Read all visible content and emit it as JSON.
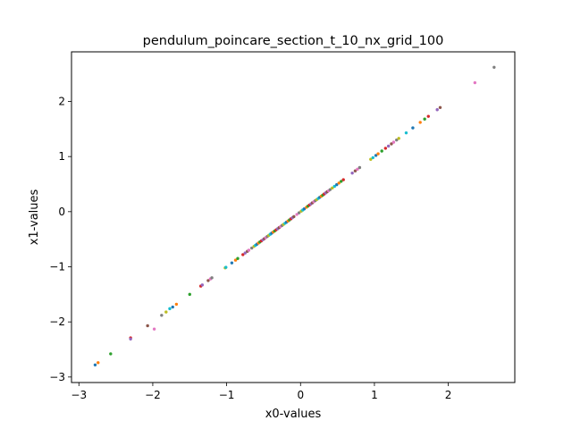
{
  "chart_data": {
    "type": "scatter",
    "title": "pendulum_poincare_section_t_10_nx_grid_100",
    "xlabel": "x0-values",
    "ylabel": "x1-values",
    "xlim": [
      -3.1,
      2.9
    ],
    "ylim": [
      -3.1,
      2.9
    ],
    "xticks": [
      -3,
      -2,
      -1,
      0,
      1,
      2
    ],
    "yticks": [
      -3,
      -2,
      -1,
      0,
      1,
      2
    ],
    "grid": false,
    "legend": "none",
    "palette": [
      "#1f77b4",
      "#ff7f0e",
      "#2ca02c",
      "#d62728",
      "#9467bd",
      "#8c564b",
      "#e377c2",
      "#7f7f7f",
      "#bcbd22",
      "#17becf"
    ],
    "points": [
      {
        "x": -2.78,
        "y": -2.78
      },
      {
        "x": -2.74,
        "y": -2.74
      },
      {
        "x": -2.57,
        "y": -2.58
      },
      {
        "x": -2.3,
        "y": -2.29
      },
      {
        "x": -2.3,
        "y": -2.31
      },
      {
        "x": -2.07,
        "y": -2.07
      },
      {
        "x": -1.98,
        "y": -2.13
      },
      {
        "x": -1.88,
        "y": -1.88
      },
      {
        "x": -1.82,
        "y": -1.82
      },
      {
        "x": -1.77,
        "y": -1.76
      },
      {
        "x": -1.73,
        "y": -1.73
      },
      {
        "x": -1.68,
        "y": -1.68
      },
      {
        "x": -1.5,
        "y": -1.5
      },
      {
        "x": -1.35,
        "y": -1.35
      },
      {
        "x": -1.33,
        "y": -1.33
      },
      {
        "x": -1.25,
        "y": -1.25
      },
      {
        "x": -1.22,
        "y": -1.22
      },
      {
        "x": -1.2,
        "y": -1.2
      },
      {
        "x": -1.02,
        "y": -1.02
      },
      {
        "x": -1.01,
        "y": -1.01
      },
      {
        "x": -0.93,
        "y": -0.93
      },
      {
        "x": -0.88,
        "y": -0.88
      },
      {
        "x": -0.85,
        "y": -0.85
      },
      {
        "x": -0.78,
        "y": -0.78
      },
      {
        "x": -0.75,
        "y": -0.75
      },
      {
        "x": -0.72,
        "y": -0.72
      },
      {
        "x": -0.7,
        "y": -0.7
      },
      {
        "x": -0.66,
        "y": -0.66
      },
      {
        "x": -0.63,
        "y": -0.63
      },
      {
        "x": -0.61,
        "y": -0.61
      },
      {
        "x": -0.59,
        "y": -0.59
      },
      {
        "x": -0.57,
        "y": -0.57
      },
      {
        "x": -0.55,
        "y": -0.55
      },
      {
        "x": -0.53,
        "y": -0.53
      },
      {
        "x": -0.51,
        "y": -0.51
      },
      {
        "x": -0.49,
        "y": -0.49
      },
      {
        "x": -0.47,
        "y": -0.47
      },
      {
        "x": -0.45,
        "y": -0.45
      },
      {
        "x": -0.43,
        "y": -0.43
      },
      {
        "x": -0.41,
        "y": -0.41
      },
      {
        "x": -0.39,
        "y": -0.39
      },
      {
        "x": -0.37,
        "y": -0.37
      },
      {
        "x": -0.35,
        "y": -0.35
      },
      {
        "x": -0.33,
        "y": -0.33
      },
      {
        "x": -0.31,
        "y": -0.31
      },
      {
        "x": -0.29,
        "y": -0.29
      },
      {
        "x": -0.27,
        "y": -0.27
      },
      {
        "x": -0.25,
        "y": -0.25
      },
      {
        "x": -0.23,
        "y": -0.23
      },
      {
        "x": -0.21,
        "y": -0.21
      },
      {
        "x": -0.19,
        "y": -0.19
      },
      {
        "x": -0.17,
        "y": -0.17
      },
      {
        "x": -0.15,
        "y": -0.15
      },
      {
        "x": -0.13,
        "y": -0.13
      },
      {
        "x": -0.11,
        "y": -0.11
      },
      {
        "x": -0.09,
        "y": -0.09
      },
      {
        "x": -0.05,
        "y": -0.05
      },
      {
        "x": -0.02,
        "y": -0.02
      },
      {
        "x": 0.01,
        "y": 0.01
      },
      {
        "x": 0.03,
        "y": 0.03
      },
      {
        "x": 0.05,
        "y": 0.05
      },
      {
        "x": 0.08,
        "y": 0.08
      },
      {
        "x": 0.1,
        "y": 0.1
      },
      {
        "x": 0.12,
        "y": 0.12
      },
      {
        "x": 0.14,
        "y": 0.14
      },
      {
        "x": 0.16,
        "y": 0.16
      },
      {
        "x": 0.18,
        "y": 0.18
      },
      {
        "x": 0.2,
        "y": 0.2
      },
      {
        "x": 0.22,
        "y": 0.22
      },
      {
        "x": 0.24,
        "y": 0.24
      },
      {
        "x": 0.26,
        "y": 0.26
      },
      {
        "x": 0.28,
        "y": 0.28
      },
      {
        "x": 0.3,
        "y": 0.3
      },
      {
        "x": 0.32,
        "y": 0.32
      },
      {
        "x": 0.34,
        "y": 0.34
      },
      {
        "x": 0.36,
        "y": 0.36
      },
      {
        "x": 0.38,
        "y": 0.38
      },
      {
        "x": 0.4,
        "y": 0.4
      },
      {
        "x": 0.43,
        "y": 0.43
      },
      {
        "x": 0.46,
        "y": 0.46
      },
      {
        "x": 0.49,
        "y": 0.49
      },
      {
        "x": 0.52,
        "y": 0.52
      },
      {
        "x": 0.55,
        "y": 0.55
      },
      {
        "x": 0.58,
        "y": 0.58
      },
      {
        "x": 0.7,
        "y": 0.7
      },
      {
        "x": 0.74,
        "y": 0.74
      },
      {
        "x": 0.77,
        "y": 0.77
      },
      {
        "x": 0.8,
        "y": 0.8
      },
      {
        "x": 0.95,
        "y": 0.95
      },
      {
        "x": 0.98,
        "y": 0.98
      },
      {
        "x": 1.02,
        "y": 1.02
      },
      {
        "x": 1.05,
        "y": 1.05
      },
      {
        "x": 1.1,
        "y": 1.1
      },
      {
        "x": 1.15,
        "y": 1.15
      },
      {
        "x": 1.19,
        "y": 1.19
      },
      {
        "x": 1.23,
        "y": 1.23
      },
      {
        "x": 1.26,
        "y": 1.26
      },
      {
        "x": 1.3,
        "y": 1.3
      },
      {
        "x": 1.33,
        "y": 1.33
      },
      {
        "x": 1.43,
        "y": 1.43
      },
      {
        "x": 1.52,
        "y": 1.52
      },
      {
        "x": 1.62,
        "y": 1.62
      },
      {
        "x": 1.68,
        "y": 1.68
      },
      {
        "x": 1.73,
        "y": 1.73
      },
      {
        "x": 1.85,
        "y": 1.85
      },
      {
        "x": 1.89,
        "y": 1.89
      },
      {
        "x": 2.36,
        "y": 2.34
      },
      {
        "x": 2.62,
        "y": 2.62
      }
    ]
  }
}
